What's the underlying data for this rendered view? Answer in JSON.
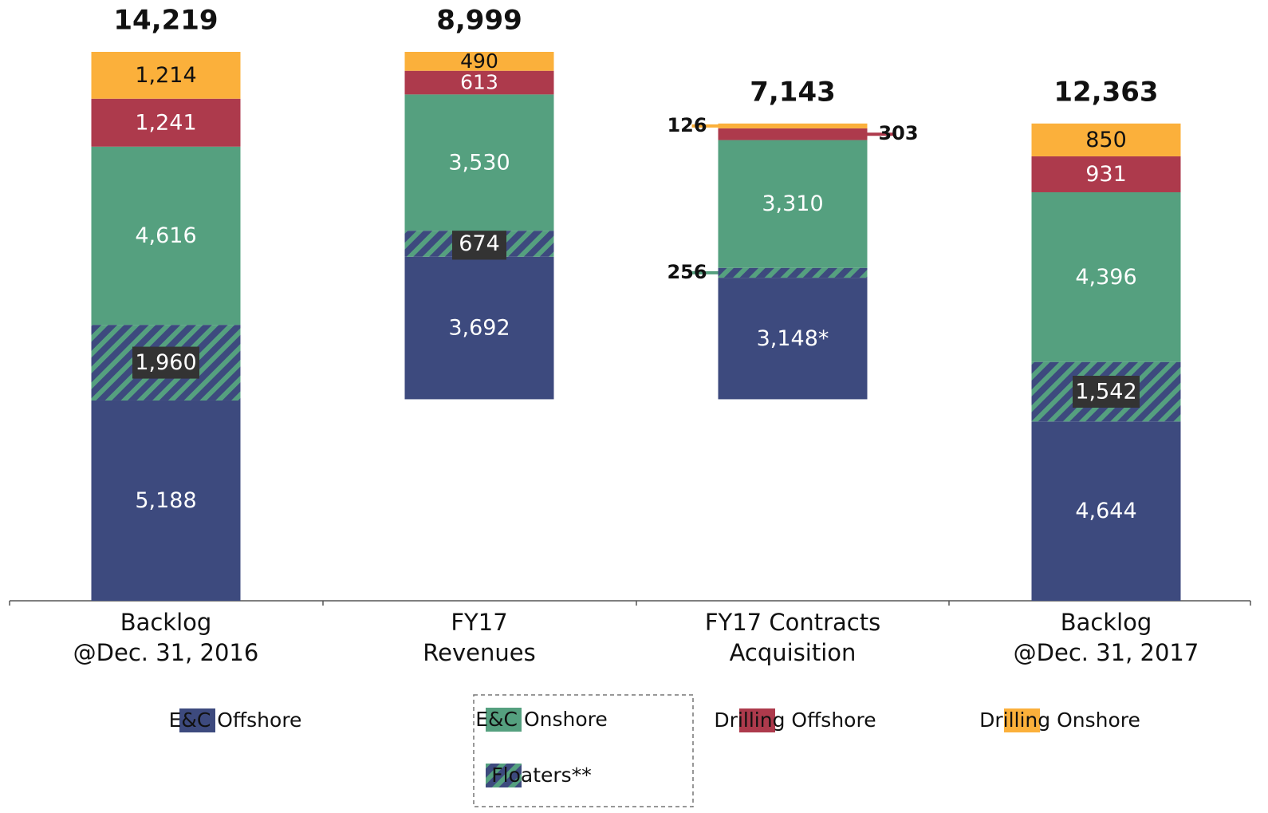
{
  "chart_data": {
    "type": "waterfall",
    "categories": [
      [
        "Backlog",
        "@Dec. 31, 2016"
      ],
      [
        "FY17",
        "Revenues"
      ],
      [
        "FY17 Contracts",
        "Acquisition"
      ],
      [
        "Backlog",
        "@Dec. 31, 2017"
      ]
    ],
    "measure": [
      "absolute",
      "decrease",
      "increase",
      "absolute"
    ],
    "series": [
      {
        "name": "E&C Offshore",
        "color": "#3d4a7e",
        "values": [
          5188,
          3692,
          3148,
          4644
        ],
        "value_labels": [
          "5,188",
          "3,692",
          "3,148*",
          "4,644"
        ]
      },
      {
        "name": "Floaters**",
        "color": "#55a07f",
        "pattern": "stripes",
        "values": [
          1960,
          674,
          256,
          1542
        ],
        "value_labels": [
          "1,960",
          "674",
          "256",
          "1,542"
        ]
      },
      {
        "name": "E&C Onshore",
        "color": "#55a07f",
        "values": [
          4616,
          3530,
          3310,
          4396
        ],
        "value_labels": [
          "4,616",
          "3,530",
          "3,310",
          "4,396"
        ]
      },
      {
        "name": "Drilling Offshore",
        "color": "#ad3a4c",
        "values": [
          1241,
          613,
          303,
          931
        ],
        "value_labels": [
          "1,241",
          "613",
          "303",
          "931"
        ]
      },
      {
        "name": "Drilling Onshore",
        "color": "#fbb03b",
        "values": [
          1214,
          490,
          126,
          850
        ],
        "value_labels": [
          "1,214",
          "490",
          "126",
          "850"
        ]
      }
    ],
    "totals": [
      14219,
      8999,
      7143,
      12363
    ],
    "total_labels": [
      "14,219",
      "8,999",
      "7,143",
      "12,363"
    ]
  }
}
